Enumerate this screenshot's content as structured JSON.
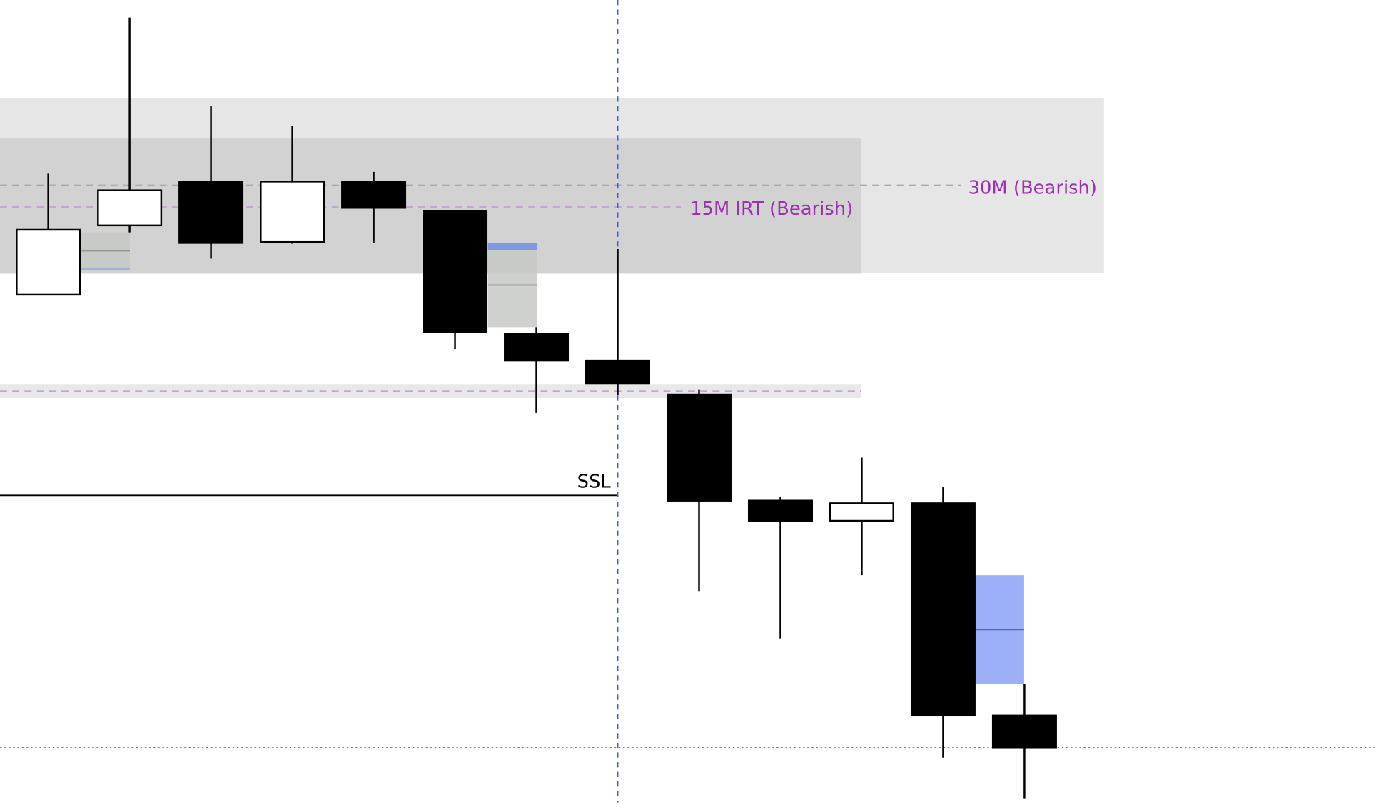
{
  "chart_data": {
    "type": "candlestick",
    "price_scale_note": "no price axis is shown",
    "candles": [
      {
        "open": 664,
        "high": 802,
        "low": 664,
        "close": 738
      },
      {
        "open": 743,
        "high": 980,
        "low": 735,
        "close": 783
      },
      {
        "open": 793,
        "high": 879,
        "low": 705,
        "close": 723
      },
      {
        "open": 724,
        "high": 856,
        "low": 722,
        "close": 793
      },
      {
        "open": 793,
        "high": 804,
        "low": 723,
        "close": 763
      },
      {
        "open": 759,
        "high": 759,
        "low": 602,
        "close": 621
      },
      {
        "open": 619,
        "high": 627,
        "low": 529,
        "close": 589
      },
      {
        "open": 589,
        "high": 716,
        "low": 550,
        "close": 563
      },
      {
        "open": 550,
        "high": 556,
        "low": 326,
        "close": 429
      },
      {
        "open": 429,
        "high": 433,
        "low": 272,
        "close": 406
      },
      {
        "open": 406,
        "high": 478,
        "low": 344,
        "close": 426
      },
      {
        "open": 426,
        "high": 445,
        "low": 136,
        "close": 184
      },
      {
        "open": 184,
        "high": 220,
        "low": 89,
        "close": 147
      }
    ],
    "zones": [
      {
        "label": "30M (Bearish)",
        "top": 888,
        "bottom": 689,
        "level": 789,
        "color": "#e6e6e6"
      },
      {
        "label": "15M IRT (Bearish)",
        "top": 842,
        "bottom": 688,
        "level": 764,
        "color": "#d2d2d2"
      },
      {
        "label": "",
        "top": 562,
        "bottom": 546,
        "level": 554,
        "color": "#e8e8e8"
      }
    ],
    "gaps": [
      {
        "top": 735,
        "bottom": 692,
        "mid": 714,
        "color": "#c5cac5"
      },
      {
        "top": 723,
        "bottom": 627,
        "mid": 675,
        "color": "#c5cac5",
        "edge_color": "#7f98e0"
      },
      {
        "top": 344,
        "bottom": 220,
        "mid": 282,
        "color": "#9bb0f8"
      }
    ],
    "ssl": {
      "label": "SSL",
      "level": 435
    },
    "current_price_level": 147,
    "vertical_marker_candle_index": 7,
    "colors": {
      "label": "#9b30b0",
      "dashed_level": "#c09ad0",
      "vertical_marker": "#2a5ff0",
      "bull": "#ffffff",
      "bear": "#000000"
    }
  }
}
